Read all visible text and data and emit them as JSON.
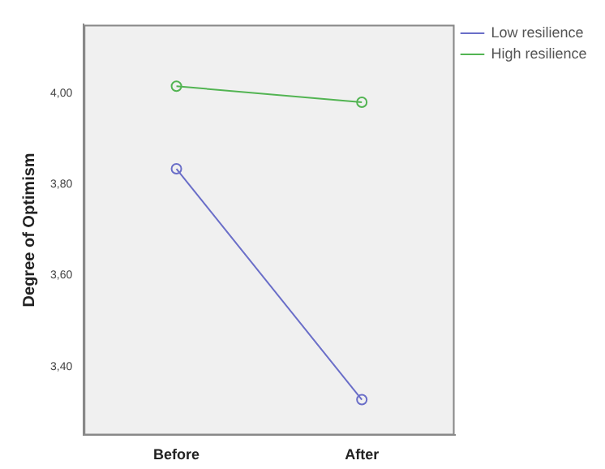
{
  "chart_data": {
    "type": "line",
    "ylabel": "Degree of Optimism",
    "categories": [
      "Before",
      "After"
    ],
    "series": [
      {
        "name": "Low resilience",
        "color": "#6a6ec8",
        "values": [
          3.834,
          3.328
        ]
      },
      {
        "name": "High resilience",
        "color": "#52b452",
        "values": [
          4.015,
          3.98
        ]
      }
    ],
    "ylim": [
      3.25,
      4.15
    ],
    "yticks": [
      {
        "value": 3.4,
        "label": "3,40"
      },
      {
        "value": 3.6,
        "label": "3,60"
      },
      {
        "value": 3.8,
        "label": "3,80"
      },
      {
        "value": 4,
        "label": "4,00"
      }
    ],
    "grid": false,
    "legend": "top right",
    "marker": "circle",
    "line_style": "solid"
  }
}
